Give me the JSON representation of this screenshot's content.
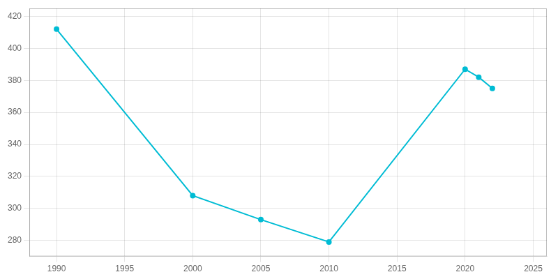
{
  "chart_data": {
    "type": "line",
    "x": [
      1990,
      2000,
      2005,
      2010,
      2020,
      2021,
      2022
    ],
    "values": [
      412,
      308,
      293,
      279,
      387,
      382,
      375
    ],
    "color": "#00BCD4",
    "xlim": [
      1988,
      2026
    ],
    "ylim": [
      270,
      425
    ],
    "xticks": [
      1990,
      1995,
      2000,
      2005,
      2010,
      2015,
      2020,
      2025
    ],
    "yticks": [
      280,
      300,
      320,
      340,
      360,
      380,
      400,
      420
    ],
    "grid": true
  }
}
